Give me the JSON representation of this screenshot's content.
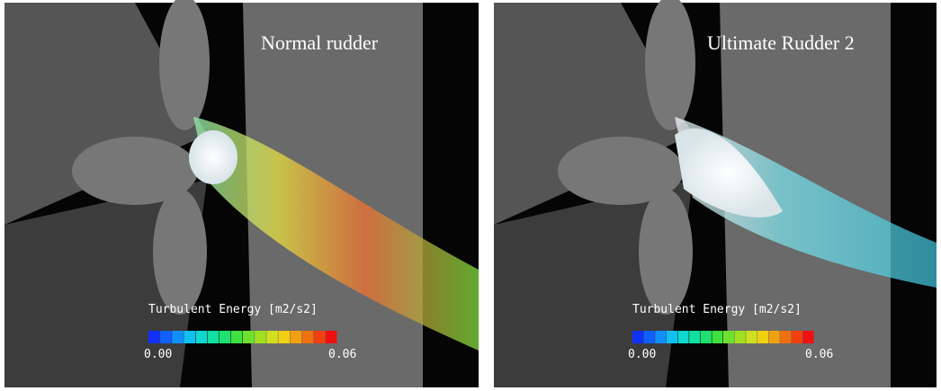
{
  "panels": [
    {
      "title": "Normal rudder",
      "legend": {
        "label": "Turbulent Energy [m2/s2]",
        "min": "0.00",
        "max": "0.06"
      }
    },
    {
      "title": "Ultimate Rudder 2",
      "legend": {
        "label": "Turbulent Energy [m2/s2]",
        "min": "0.00",
        "max": "0.06"
      }
    }
  ]
}
